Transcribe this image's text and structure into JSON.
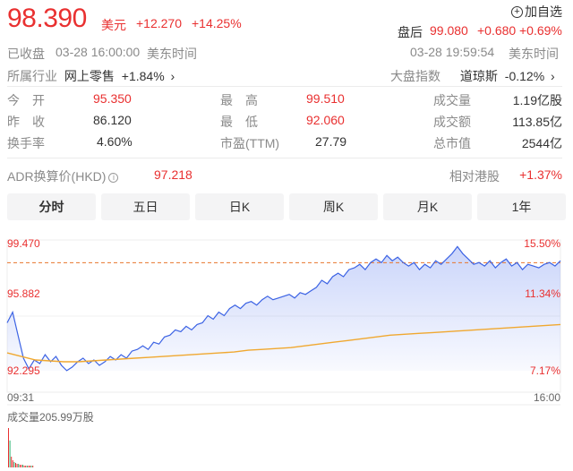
{
  "header": {
    "price": "98.390",
    "currency": "美元",
    "change": "+12.270",
    "change_pct": "+14.25%",
    "watch_label": "加自选",
    "status": "已收盘",
    "close_time": "03-28 16:00:00",
    "timezone": "美东时间",
    "after_label": "盘后",
    "after_price": "99.080",
    "after_change": "+0.680",
    "after_pct": "+0.69%",
    "after_time": "03-28 19:59:54",
    "after_timezone": "美东时间",
    "industry_label": "所属行业",
    "industry_name": "网上零售",
    "industry_pct": "+1.84%",
    "index_label": "大盘指数",
    "index_name": "道琼斯",
    "index_pct": "-0.12%"
  },
  "stats": [
    {
      "label": "今　开",
      "value": "95.350",
      "color": "red"
    },
    {
      "label": "最　高",
      "value": "99.510",
      "color": "red"
    },
    {
      "label": "成交量",
      "value": "1.19亿股",
      "color": "dark"
    },
    {
      "label": "昨　收",
      "value": "86.120",
      "color": "dark"
    },
    {
      "label": "最　低",
      "value": "92.060",
      "color": "red"
    },
    {
      "label": "成交额",
      "value": "113.85亿",
      "color": "dark"
    },
    {
      "label": "换手率",
      "value": "4.60%",
      "color": "dark"
    },
    {
      "label": "市盈(TTM)",
      "value": "27.79",
      "color": "dark"
    },
    {
      "label": "总市值",
      "value": "2544亿",
      "color": "dark"
    }
  ],
  "adr": {
    "label": "ADR换算价(HKD)",
    "value": "97.218",
    "rel_label": "相对港股",
    "rel_value": "+1.37%"
  },
  "tabs": [
    "分时",
    "五日",
    "日K",
    "周K",
    "月K",
    "1年"
  ],
  "chart": {
    "y_top": "99.470",
    "y_mid": "95.882",
    "y_bot": "92.295",
    "pct_top": "15.50%",
    "pct_mid": "11.34%",
    "pct_bot": "7.17%",
    "time_start": "09:31",
    "time_end": "16:00",
    "volume_label": "成交量205.99万股"
  },
  "chart_data": {
    "type": "line",
    "title": "",
    "xlabel": "",
    "ylabel": "",
    "ylim": [
      92.295,
      99.47
    ],
    "x_range": [
      "09:31",
      "16:00"
    ],
    "reference_line": 98.39,
    "series": [
      {
        "values": [
          95.0,
          95.6,
          94.3,
          93.0,
          92.4,
          92.9,
          92.7,
          93.2,
          92.8,
          93.1,
          92.6,
          92.3,
          92.5,
          92.8,
          93.0,
          92.7,
          92.9,
          92.6,
          92.8,
          93.1,
          92.9,
          93.2,
          93.0,
          93.4,
          93.5,
          93.7,
          93.5,
          93.9,
          93.8,
          94.2,
          94.3,
          94.6,
          94.5,
          94.8,
          94.6,
          94.9,
          95.0,
          95.4,
          95.2,
          95.6,
          95.4,
          95.8,
          96.0,
          95.8,
          96.1,
          96.2,
          96.0,
          96.3,
          96.5,
          96.3,
          96.4,
          96.5,
          96.6,
          96.4,
          96.7,
          96.6,
          96.8,
          97.0,
          97.4,
          97.2,
          97.6,
          97.8,
          97.6,
          98.0,
          98.1,
          98.3,
          98.0,
          98.4,
          98.6,
          98.4,
          98.8,
          98.5,
          98.7,
          98.4,
          98.2,
          98.4,
          98.0,
          98.3,
          98.1,
          98.5,
          98.3,
          98.6,
          98.9,
          99.3,
          98.9,
          98.6,
          98.3,
          98.4,
          98.2,
          98.5,
          98.1,
          98.4,
          98.6,
          98.2,
          98.4,
          98.0,
          98.3,
          98.2,
          98.1,
          98.3,
          98.4,
          98.2,
          98.5
        ]
      },
      {
        "values": [
          93.3,
          93.1,
          92.9,
          92.85,
          92.8,
          92.8,
          92.85,
          92.9,
          92.95,
          93.0,
          93.05,
          93.1,
          93.15,
          93.2,
          93.25,
          93.3,
          93.35,
          93.45,
          93.5,
          93.55,
          93.6,
          93.7,
          93.8,
          93.9,
          94.0,
          94.1,
          94.2,
          94.3,
          94.35,
          94.4,
          94.45,
          94.5,
          94.55,
          94.6,
          94.65,
          94.7,
          94.75,
          94.8,
          94.85,
          94.9
        ]
      }
    ]
  }
}
